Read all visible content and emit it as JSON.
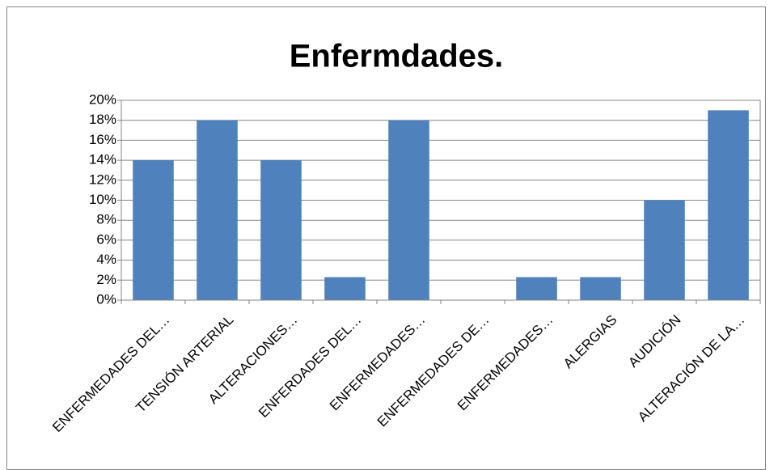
{
  "chart_data": {
    "type": "bar",
    "title": "Enfermdades.",
    "categories": [
      "ENFERMEDADES DEL…",
      "TENSIÓN ARTERIAL",
      "ALTERACIONES…",
      "ENFERDADES DEL…",
      "ENFERMEDADES…",
      "ENFERMEDADES DE…",
      "ENFERMEDADES…",
      "ALERGIAS",
      "AUDICIÓN",
      "ALTERACIÓN DE LA…"
    ],
    "values": [
      14,
      18,
      14,
      2.3,
      18,
      0,
      2.3,
      2.3,
      10,
      19
    ],
    "color": "#4f81bd",
    "ylim": [
      0,
      20
    ],
    "yticks": [
      {
        "value": 0,
        "label": "0%"
      },
      {
        "value": 2,
        "label": "2%"
      },
      {
        "value": 4,
        "label": "4%"
      },
      {
        "value": 6,
        "label": "6%"
      },
      {
        "value": 8,
        "label": "8%"
      },
      {
        "value": 10,
        "label": "10%"
      },
      {
        "value": 12,
        "label": "12%"
      },
      {
        "value": 14,
        "label": "14%"
      },
      {
        "value": 16,
        "label": "16%"
      },
      {
        "value": 18,
        "label": "18%"
      },
      {
        "value": 20,
        "label": "20%"
      }
    ],
    "grid": true
  }
}
